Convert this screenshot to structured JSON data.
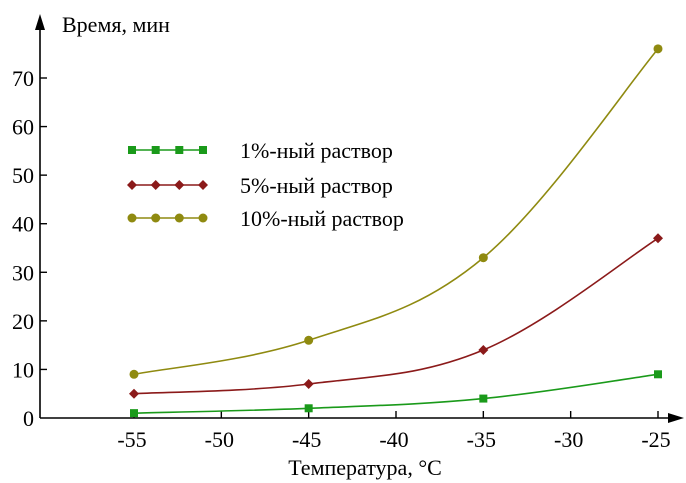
{
  "chart_data": {
    "type": "line",
    "ylabel": "Время, мин",
    "xlabel": "Температура, °C",
    "x": [
      -55,
      -45,
      -35,
      -25
    ],
    "xlim": [
      -60,
      -20
    ],
    "ylim": [
      0,
      80
    ],
    "xticks": [
      -55,
      -50,
      -45,
      -40,
      -35,
      -30,
      -25
    ],
    "yticks": [
      0,
      10,
      20,
      30,
      40,
      50,
      60,
      70
    ],
    "grid": false,
    "legend_position": "upper-left",
    "series": [
      {
        "name": "1%-ный раствор",
        "values": [
          1,
          2,
          4,
          9
        ],
        "color": "#1a9a1a",
        "marker": "square"
      },
      {
        "name": "5%-ный раствор",
        "values": [
          5,
          7,
          14,
          37
        ],
        "color": "#8b1a1a",
        "marker": "diamond"
      },
      {
        "name": "10%-ный раствор",
        "values": [
          9,
          16,
          33,
          76
        ],
        "color": "#8f8a10",
        "marker": "circle"
      }
    ]
  }
}
